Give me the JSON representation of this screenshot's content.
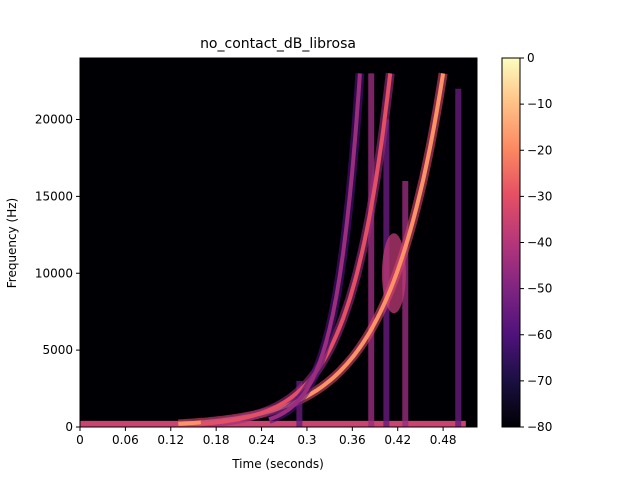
{
  "chart_data": {
    "type": "heatmap",
    "title": "no_contact_dB_librosa",
    "xlabel": "Time (seconds)",
    "ylabel": "Frequency (Hz)",
    "xlim": [
      0,
      0.5248
    ],
    "ylim": [
      0,
      24000
    ],
    "x_ticks": [
      0,
      0.06,
      0.12,
      0.18,
      0.24,
      0.3,
      0.36,
      0.42,
      0.48
    ],
    "x_tick_labels": [
      "0",
      "0.06",
      "0.12",
      "0.18",
      "0.24",
      "0.3",
      "0.36",
      "0.42",
      "0.48"
    ],
    "y_ticks": [
      0,
      5000,
      10000,
      15000,
      20000
    ],
    "y_tick_labels": [
      "0",
      "5000",
      "10000",
      "15000",
      "20000"
    ],
    "colorbar": {
      "colormap": "magma",
      "range": [
        -80,
        0
      ],
      "ticks": [
        0,
        -10,
        -20,
        -30,
        -40,
        -50,
        -60,
        -70,
        -80
      ],
      "tick_labels": [
        "0",
        "−10",
        "−20",
        "−30",
        "−40",
        "−50",
        "−60",
        "−70",
        "−80"
      ]
    },
    "background_db": -80,
    "features": {
      "chirp_curves": [
        {
          "start_time": 0.13,
          "start_freq": 200,
          "end_time": 0.48,
          "end_freq": 23000,
          "peak_db": -18
        },
        {
          "start_time": 0.16,
          "start_freq": 200,
          "end_time": 0.41,
          "end_freq": 23000,
          "peak_db": -30
        },
        {
          "start_time": 0.25,
          "start_freq": 500,
          "end_time": 0.37,
          "end_freq": 23000,
          "peak_db": -45
        }
      ],
      "low_frequency_band": {
        "time_start": 0,
        "time_end": 0.51,
        "freq_max": 400,
        "peak_db": -35
      },
      "vertical_streaks": [
        {
          "time": 0.29,
          "freq_max": 3000,
          "db": -55
        },
        {
          "time": 0.385,
          "freq_max": 23000,
          "db": -45
        },
        {
          "time": 0.405,
          "freq_max": 20000,
          "db": -55
        },
        {
          "time": 0.43,
          "freq_max": 16000,
          "db": -45
        },
        {
          "time": 0.5,
          "freq_max": 22000,
          "db": -55
        }
      ],
      "blob": {
        "time": 0.415,
        "freq": 10000,
        "db": -38
      }
    }
  }
}
